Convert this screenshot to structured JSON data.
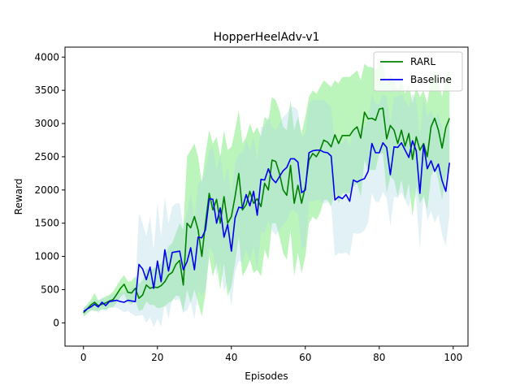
{
  "chart_data": {
    "type": "line",
    "title": "HopperHeelAdv-v1",
    "xlabel": "Episodes",
    "ylabel": "Reward",
    "xlim": [
      -5,
      104
    ],
    "ylim": [
      -350,
      4150
    ],
    "xticks": [
      0,
      20,
      40,
      60,
      80,
      100
    ],
    "yticks": [
      0,
      500,
      1000,
      1500,
      2000,
      2500,
      3000,
      3500,
      4000
    ],
    "legend_position": "top-right",
    "grid": false,
    "series": [
      {
        "name": "RARL",
        "color": "#008000",
        "band_color": "#90ee90",
        "x": [
          0,
          1,
          2,
          3,
          4,
          5,
          6,
          7,
          8,
          9,
          10,
          11,
          12,
          13,
          14,
          15,
          16,
          17,
          18,
          19,
          20,
          21,
          22,
          23,
          24,
          25,
          26,
          27,
          28,
          29,
          30,
          31,
          32,
          33,
          34,
          35,
          36,
          37,
          38,
          39,
          40,
          41,
          42,
          43,
          44,
          45,
          46,
          47,
          48,
          49,
          50,
          51,
          52,
          53,
          54,
          55,
          56,
          57,
          58,
          59,
          60,
          61,
          62,
          63,
          64,
          65,
          66,
          67,
          68,
          69,
          70,
          71,
          72,
          73,
          74,
          75,
          76,
          77,
          78,
          79,
          80,
          81,
          82,
          83,
          84,
          85,
          86,
          87,
          88,
          89,
          90,
          91,
          92,
          93,
          94,
          95,
          96,
          97,
          98,
          99
        ],
        "values": [
          150,
          210,
          270,
          310,
          260,
          280,
          300,
          330,
          350,
          430,
          520,
          580,
          460,
          450,
          520,
          370,
          420,
          570,
          520,
          540,
          530,
          560,
          620,
          720,
          760,
          880,
          940,
          570,
          1500,
          1430,
          1600,
          1400,
          1000,
          1500,
          1950,
          1700,
          1860,
          1500,
          1900,
          1500,
          1600,
          1900,
          2250,
          1700,
          1780,
          1980,
          1800,
          1870,
          1750,
          2100,
          2000,
          2450,
          2430,
          2250,
          2000,
          1920,
          2370,
          1800,
          2070,
          1800,
          2050,
          2450,
          2550,
          2500,
          2600,
          2750,
          2720,
          2650,
          2830,
          2700,
          2820,
          2820,
          2820,
          2900,
          2950,
          2780,
          3170,
          3070,
          3080,
          3050,
          3220,
          3230,
          2770,
          2970,
          2900,
          2700,
          2900,
          2660,
          2850,
          2460,
          2800,
          2600,
          2700,
          2500,
          2950,
          3080,
          2900,
          2630,
          2940,
          3080
        ],
        "upper": [
          220,
          280,
          350,
          450,
          340,
          360,
          400,
          420,
          470,
          560,
          650,
          720,
          620,
          630,
          700,
          580,
          640,
          820,
          780,
          820,
          850,
          900,
          1000,
          1150,
          1200,
          1350,
          1500,
          1400,
          2500,
          2600,
          2700,
          2500,
          2100,
          2550,
          2900,
          2700,
          2800,
          2500,
          2900,
          2600,
          2650,
          2900,
          3200,
          2700,
          2800,
          3000,
          2850,
          2950,
          2800,
          3100,
          3050,
          3400,
          3350,
          3200,
          2950,
          2900,
          3350,
          2900,
          3100,
          2850,
          3100,
          3400,
          3500,
          3450,
          3550,
          3650,
          3600,
          3550,
          3650,
          3600,
          3700,
          3700,
          3700,
          3750,
          3800,
          3650,
          3900,
          3850,
          3850,
          3800,
          3900,
          3900,
          3600,
          3750,
          3650,
          3500,
          3650,
          3450,
          3600,
          3300,
          3550,
          3400,
          3500,
          3300,
          3700,
          3800,
          3650,
          3400,
          3700,
          3800
        ],
        "lower": [
          90,
          140,
          190,
          180,
          180,
          200,
          200,
          230,
          240,
          300,
          390,
          440,
          300,
          280,
          340,
          180,
          200,
          320,
          270,
          270,
          220,
          230,
          250,
          300,
          330,
          410,
          400,
          160,
          500,
          300,
          500,
          300,
          100,
          450,
          1000,
          700,
          900,
          500,
          900,
          400,
          550,
          900,
          1300,
          700,
          800,
          950,
          750,
          800,
          700,
          1100,
          950,
          1500,
          1500,
          1300,
          1050,
          950,
          1400,
          700,
          1050,
          750,
          1000,
          1500,
          1600,
          1550,
          1650,
          1850,
          1850,
          1750,
          2000,
          1800,
          1950,
          1950,
          1950,
          2050,
          2100,
          1900,
          2450,
          2300,
          2300,
          2300,
          2550,
          2550,
          1950,
          2200,
          2150,
          1900,
          2150,
          1850,
          2100,
          1600,
          2050,
          1800,
          1900,
          1700,
          2200,
          2350,
          2150,
          1850,
          2200,
          2350
        ]
      },
      {
        "name": "Baseline",
        "color": "#0000ee",
        "band_color": "#add8e6",
        "x": [
          0,
          1,
          2,
          3,
          4,
          5,
          6,
          7,
          8,
          9,
          10,
          11,
          12,
          13,
          14,
          15,
          16,
          17,
          18,
          19,
          20,
          21,
          22,
          23,
          24,
          25,
          26,
          27,
          28,
          29,
          30,
          31,
          32,
          33,
          34,
          35,
          36,
          37,
          38,
          39,
          40,
          41,
          42,
          43,
          44,
          45,
          46,
          47,
          48,
          49,
          50,
          51,
          52,
          53,
          54,
          55,
          56,
          57,
          58,
          59,
          60,
          61,
          62,
          63,
          64,
          65,
          66,
          67,
          68,
          69,
          70,
          71,
          72,
          73,
          74,
          75,
          76,
          77,
          78,
          79,
          80,
          81,
          82,
          83,
          84,
          85,
          86,
          87,
          88,
          89,
          90,
          91,
          92,
          93,
          94,
          95,
          96,
          97,
          98,
          99
        ],
        "values": [
          170,
          210,
          240,
          280,
          240,
          310,
          260,
          320,
          330,
          340,
          320,
          310,
          340,
          330,
          320,
          880,
          810,
          650,
          840,
          520,
          930,
          620,
          1100,
          780,
          1060,
          1070,
          1080,
          800,
          920,
          1130,
          800,
          1290,
          1280,
          1400,
          1870,
          1860,
          1500,
          1730,
          1290,
          1480,
          1080,
          1580,
          1740,
          1730,
          1930,
          1760,
          1980,
          1620,
          2160,
          2150,
          2320,
          2170,
          2110,
          2200,
          2290,
          2340,
          2470,
          2470,
          2420,
          1960,
          2000,
          2560,
          2590,
          2600,
          2600,
          2570,
          2560,
          2510,
          1850,
          1900,
          1870,
          1930,
          1830,
          2150,
          2120,
          2150,
          2170,
          2280,
          2700,
          2560,
          2560,
          2710,
          2640,
          2230,
          2650,
          2640,
          2710,
          2600,
          2490,
          2740,
          2590,
          1950,
          2680,
          2320,
          2440,
          2280,
          2390,
          2140,
          1980,
          2410
        ],
        "upper": [
          230,
          260,
          300,
          360,
          330,
          390,
          350,
          410,
          430,
          450,
          450,
          460,
          500,
          520,
          540,
          1650,
          1500,
          1300,
          1600,
          1100,
          1800,
          1300,
          1900,
          1500,
          1750,
          1800,
          1800,
          1450,
          1650,
          1950,
          1550,
          2100,
          2150,
          2300,
          2600,
          2650,
          2300,
          2550,
          2100,
          2350,
          1900,
          2400,
          2550,
          2550,
          2750,
          2600,
          2800,
          2450,
          2950,
          2950,
          3100,
          2950,
          2900,
          3000,
          3100,
          3150,
          3250,
          3250,
          3200,
          2800,
          2850,
          3300,
          3350,
          3350,
          3350,
          3350,
          3300,
          3250,
          2700,
          2750,
          2700,
          2800,
          2650,
          2950,
          2900,
          2950,
          2950,
          3050,
          3450,
          3300,
          3300,
          3450,
          3400,
          3000,
          3400,
          3400,
          3450,
          3350,
          3250,
          3450,
          3350,
          2800,
          3400,
          3100,
          3200,
          3050,
          3150,
          2950,
          2800,
          3200
        ],
        "lower": [
          110,
          160,
          180,
          200,
          150,
          230,
          170,
          230,
          230,
          230,
          190,
          160,
          180,
          140,
          100,
          110,
          120,
          0,
          80,
          -60,
          60,
          -60,
          300,
          60,
          370,
          340,
          360,
          150,
          190,
          310,
          50,
          480,
          410,
          500,
          1140,
          1070,
          700,
          910,
          480,
          610,
          260,
          760,
          930,
          910,
          1110,
          920,
          1160,
          790,
          1370,
          1350,
          1540,
          1390,
          1320,
          1400,
          1480,
          1530,
          1690,
          1690,
          1640,
          1120,
          1150,
          1820,
          1830,
          1850,
          1850,
          1790,
          1820,
          1770,
          1000,
          1050,
          1040,
          1060,
          1010,
          1350,
          1340,
          1350,
          1390,
          1510,
          1950,
          1820,
          1820,
          1970,
          1880,
          1460,
          1900,
          1880,
          1970,
          1850,
          1730,
          2030,
          1830,
          1100,
          1960,
          1540,
          1680,
          1510,
          1630,
          1330,
          1160,
          1620
        ]
      }
    ]
  }
}
